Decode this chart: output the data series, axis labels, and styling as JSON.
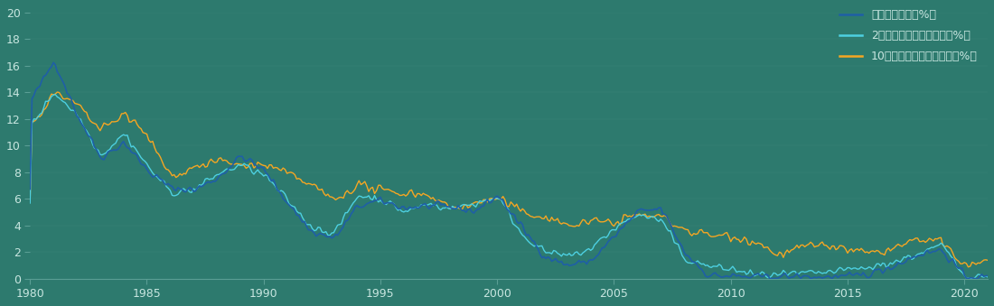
{
  "title": "",
  "background_color": "#2d7a6e",
  "line_colors": {
    "fed_funds": "#1f5fa6",
    "treasury_2y": "#4dd0e1",
    "treasury_10y": "#f5a623"
  },
  "legend_labels": [
    "联邦基金利率（%）",
    "2年期美国国库券收益率（%）",
    "10年期美国国库券收益率（%）"
  ],
  "ylim": [
    0,
    20
  ],
  "yticks": [
    0,
    2,
    4,
    6,
    8,
    10,
    12,
    14,
    16,
    18,
    20
  ],
  "xticks": [
    1980,
    1985,
    1990,
    1995,
    2000,
    2005,
    2010,
    2015,
    2020
  ],
  "text_color": "#c8e6e0",
  "axis_color": "#5a9e94",
  "years_annual": [
    1980,
    1981,
    1982,
    1983,
    1984,
    1985,
    1986,
    1987,
    1988,
    1989,
    1990,
    1991,
    1992,
    1993,
    1994,
    1995,
    1996,
    1997,
    1998,
    1999,
    2000,
    2001,
    2002,
    2003,
    2004,
    2005,
    2006,
    2007,
    2008,
    2009,
    2010,
    2011,
    2012,
    2013,
    2014,
    2015,
    2016,
    2017,
    2018,
    2019,
    2020,
    2021
  ],
  "fed_funds_annual": [
    13.35,
    16.38,
    12.24,
    9.09,
    10.23,
    8.1,
    6.8,
    6.66,
    7.57,
    9.21,
    8.1,
    5.69,
    3.52,
    3.02,
    5.45,
    5.84,
    5.3,
    5.46,
    5.35,
    5.07,
    6.24,
    3.88,
    1.67,
    1.0,
    1.35,
    3.22,
    5.02,
    5.24,
    1.92,
    0.24,
    0.18,
    0.1,
    0.14,
    0.11,
    0.09,
    0.13,
    0.4,
    1.0,
    1.83,
    2.16,
    0.09,
    0.08
  ],
  "treasury_2y_annual": [
    11.5,
    14.0,
    12.27,
    9.25,
    10.91,
    8.42,
    6.47,
    6.67,
    7.86,
    8.54,
    7.75,
    5.85,
    3.89,
    3.39,
    6.27,
    5.93,
    5.01,
    5.63,
    5.25,
    5.64,
    6.16,
    3.37,
    2.01,
    1.64,
    2.25,
    3.82,
    4.82,
    4.34,
    1.46,
    0.93,
    0.7,
    0.27,
    0.27,
    0.35,
    0.44,
    0.67,
    0.85,
    1.28,
    1.84,
    2.52,
    0.13,
    0.22
  ],
  "treasury_10y_annual": [
    11.43,
    13.91,
    13.0,
    11.1,
    12.44,
    10.62,
    7.68,
    8.39,
    8.85,
    8.49,
    8.55,
    7.86,
    7.01,
    5.87,
    7.09,
    6.57,
    6.44,
    6.35,
    5.26,
    5.64,
    6.03,
    5.02,
    4.61,
    4.01,
    4.27,
    4.29,
    4.8,
    4.63,
    3.66,
    3.26,
    3.22,
    2.78,
    1.8,
    2.35,
    2.54,
    2.14,
    1.84,
    2.33,
    2.91,
    2.72,
    0.89,
    1.45
  ]
}
